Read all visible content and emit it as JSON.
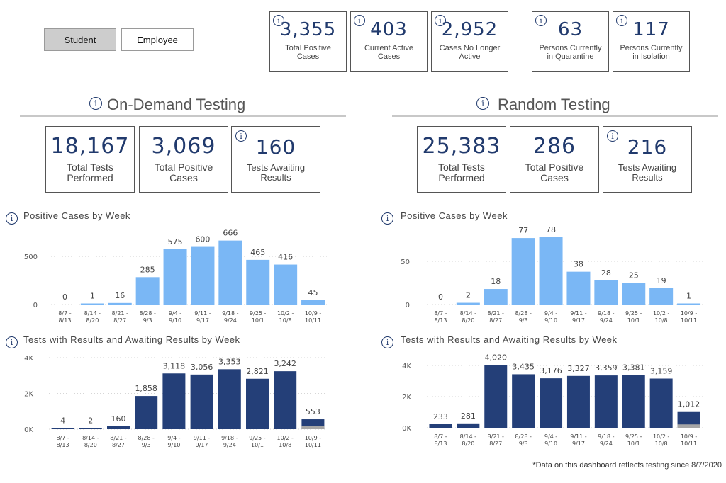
{
  "toggles": {
    "student": "Student",
    "employee": "Employee"
  },
  "summary": [
    {
      "value": "3,355",
      "label1": "Total Positive",
      "label2": "Cases"
    },
    {
      "value": "403",
      "label1": "Current Active",
      "label2": "Cases"
    },
    {
      "value": "2,952",
      "label1": "Cases No Longer",
      "label2": "Active"
    },
    {
      "value": "63",
      "label1": "Persons Currently",
      "label2": "in Quarantine"
    },
    {
      "value": "117",
      "label1": "Persons Currently",
      "label2": "in Isolation"
    }
  ],
  "ondemand": {
    "title": "On-Demand Testing",
    "cards": [
      {
        "value": "18,167",
        "label1": "Total Tests",
        "label2": "Performed"
      },
      {
        "value": "3,069",
        "label1": "Total Positive",
        "label2": "Cases"
      },
      {
        "value": "160",
        "label1": "Tests Awaiting",
        "label2": "Results"
      }
    ]
  },
  "random": {
    "title": "Random Testing",
    "cards": [
      {
        "value": "25,383",
        "label1": "Total Tests",
        "label2": "Performed"
      },
      {
        "value": "286",
        "label1": "Total Positive",
        "label2": "Cases"
      },
      {
        "value": "216",
        "label1": "Tests Awaiting",
        "label2": "Results"
      }
    ]
  },
  "info_glyph": "i",
  "colors": {
    "light_bar": "#7ab7f5",
    "dark_bar": "#243f78",
    "awaiting": "#a6a6a6",
    "value_text": "#213a6d"
  },
  "footnote": "*Data on this dashboard reflects testing since 8/7/2020",
  "chart_data": [
    {
      "id": "od_pos",
      "type": "bar",
      "title": "Positive Cases by Week",
      "categories": [
        [
          "8/7 -",
          "8/13"
        ],
        [
          "8/14 -",
          "8/20"
        ],
        [
          "8/21 -",
          "8/27"
        ],
        [
          "8/28 -",
          "9/3"
        ],
        [
          "9/4 -",
          "9/10"
        ],
        [
          "9/11 -",
          "9/17"
        ],
        [
          "9/18 -",
          "9/24"
        ],
        [
          "9/25 -",
          "10/1"
        ],
        [
          "10/2 -",
          "10/8"
        ],
        [
          "10/9 -",
          "10/11"
        ]
      ],
      "values": [
        0,
        1,
        16,
        285,
        575,
        600,
        666,
        465,
        416,
        45
      ],
      "labels": [
        "0",
        "1",
        "16",
        "285",
        "575",
        "600",
        "666",
        "465",
        "416",
        "45"
      ],
      "ylim": [
        0,
        700
      ],
      "yticks": [
        0,
        500
      ],
      "ytick_labels": [
        "0",
        "500"
      ],
      "color": "light"
    },
    {
      "id": "rd_pos",
      "type": "bar",
      "title": "Positive Cases by Week",
      "categories": [
        [
          "8/7 -",
          "8/13"
        ],
        [
          "8/14 -",
          "8/20"
        ],
        [
          "8/21 -",
          "8/27"
        ],
        [
          "8/28 -",
          "9/3"
        ],
        [
          "9/4 -",
          "9/10"
        ],
        [
          "9/11 -",
          "9/17"
        ],
        [
          "9/18 -",
          "9/24"
        ],
        [
          "9/25 -",
          "10/1"
        ],
        [
          "10/2 -",
          "10/8"
        ],
        [
          "10/9 -",
          "10/11"
        ]
      ],
      "values": [
        0,
        2,
        18,
        77,
        78,
        38,
        28,
        25,
        19,
        1
      ],
      "labels": [
        "0",
        "2",
        "18",
        "77",
        "78",
        "38",
        "28",
        "25",
        "19",
        "1"
      ],
      "ylim": [
        0,
        82
      ],
      "yticks": [
        0,
        50
      ],
      "ytick_labels": [
        "0",
        "50"
      ],
      "color": "light"
    },
    {
      "id": "od_tests",
      "type": "bar",
      "title": "Tests with Results and Awaiting Results by Week",
      "categories": [
        [
          "8/7 -",
          "8/13"
        ],
        [
          "8/14 -",
          "8/20"
        ],
        [
          "8/21 -",
          "8/27"
        ],
        [
          "8/28 -",
          "9/3"
        ],
        [
          "9/4 -",
          "9/10"
        ],
        [
          "9/11 -",
          "9/17"
        ],
        [
          "9/18 -",
          "9/24"
        ],
        [
          "9/25 -",
          "10/1"
        ],
        [
          "10/2 -",
          "10/8"
        ],
        [
          "10/9 -",
          "10/11"
        ]
      ],
      "values": [
        4,
        2,
        160,
        1858,
        3118,
        3056,
        3353,
        2821,
        3242,
        553
      ],
      "awaiting": [
        0,
        0,
        0,
        0,
        0,
        0,
        0,
        0,
        0,
        160
      ],
      "labels": [
        "4",
        "2",
        "160",
        "1,858",
        "3,118",
        "3,056",
        "3,353",
        "2,821",
        "3,242",
        "553"
      ],
      "ylim": [
        0,
        4000
      ],
      "yticks": [
        0,
        2000,
        4000
      ],
      "ytick_labels": [
        "0K",
        "2K",
        "4K"
      ],
      "color": "dark"
    },
    {
      "id": "rd_tests",
      "type": "bar",
      "title": "Tests with Results and Awaiting Results by Week",
      "categories": [
        [
          "8/7 -",
          "8/13"
        ],
        [
          "8/14 -",
          "8/20"
        ],
        [
          "8/21 -",
          "8/27"
        ],
        [
          "8/28 -",
          "9/3"
        ],
        [
          "9/4 -",
          "9/10"
        ],
        [
          "9/11 -",
          "9/17"
        ],
        [
          "9/18 -",
          "9/24"
        ],
        [
          "9/25 -",
          "10/1"
        ],
        [
          "10/2 -",
          "10/8"
        ],
        [
          "10/9 -",
          "10/11"
        ]
      ],
      "values": [
        233,
        281,
        4020,
        3435,
        3176,
        3327,
        3359,
        3381,
        3159,
        1012
      ],
      "awaiting": [
        0,
        0,
        0,
        0,
        0,
        0,
        0,
        0,
        0,
        216
      ],
      "labels": [
        "233",
        "281",
        "4,020",
        "3,435",
        "3,176",
        "3,327",
        "3,359",
        "3,381",
        "3,159",
        "1,012"
      ],
      "ylim": [
        0,
        4500
      ],
      "yticks": [
        0,
        2000,
        4000
      ],
      "ytick_labels": [
        "0K",
        "2K",
        "4K"
      ],
      "color": "dark"
    }
  ]
}
